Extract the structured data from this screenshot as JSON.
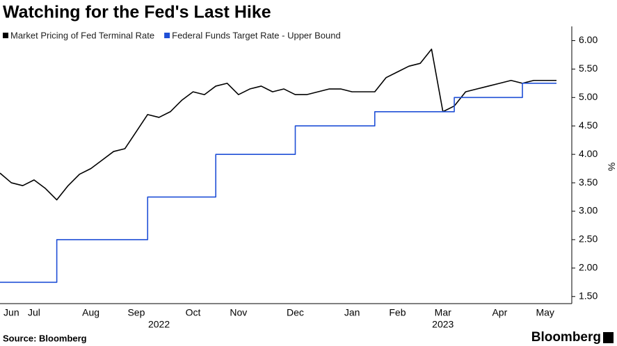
{
  "chart_data": {
    "type": "line",
    "title": "Watching for the Fed's Last Hike",
    "source": "Source: Bloomberg",
    "brand": "Bloomberg",
    "y_label": "%",
    "categories": [
      null,
      "Jun",
      null,
      "Jul",
      null,
      null,
      null,
      null,
      "Aug",
      null,
      null,
      null,
      "Sep",
      null,
      null,
      null,
      null,
      "Oct",
      null,
      null,
      null,
      "Nov",
      null,
      null,
      null,
      null,
      "Dec",
      null,
      null,
      null,
      null,
      "Jan",
      null,
      null,
      null,
      "Feb",
      null,
      null,
      null,
      "Mar",
      null,
      null,
      null,
      null,
      "Apr",
      null,
      null,
      null,
      "May",
      null
    ],
    "category_groups": [
      null,
      null,
      null,
      null,
      null,
      null,
      null,
      null,
      null,
      null,
      null,
      null,
      null,
      null,
      "2022",
      null,
      null,
      null,
      null,
      null,
      null,
      null,
      null,
      null,
      null,
      null,
      null,
      null,
      null,
      null,
      null,
      null,
      null,
      null,
      null,
      null,
      null,
      null,
      null,
      "2023",
      null,
      null,
      null,
      null,
      null,
      null,
      null,
      null,
      null,
      null
    ],
    "series": [
      {
        "name": "Market Pricing of Fed Terminal Rate",
        "color": "#000000",
        "values": [
          3.67,
          3.5,
          3.45,
          3.55,
          3.4,
          3.2,
          3.45,
          3.65,
          3.75,
          3.9,
          4.05,
          4.1,
          4.4,
          4.7,
          4.65,
          4.75,
          4.95,
          5.1,
          5.05,
          5.2,
          5.25,
          5.05,
          5.15,
          5.2,
          5.1,
          5.15,
          5.05,
          5.05,
          5.1,
          5.15,
          5.15,
          5.1,
          5.1,
          5.1,
          5.35,
          5.45,
          5.55,
          5.6,
          5.85,
          4.75,
          4.85,
          5.1,
          5.15,
          5.2,
          5.25,
          5.3,
          5.25,
          5.3,
          5.3,
          5.3
        ]
      },
      {
        "name": "Federal Funds Target Rate - Upper Bound",
        "color": "#1f4fd6",
        "step": "post",
        "values": [
          1.75,
          1.75,
          1.75,
          1.75,
          1.75,
          2.5,
          2.5,
          2.5,
          2.5,
          2.5,
          2.5,
          2.5,
          2.5,
          3.25,
          3.25,
          3.25,
          3.25,
          3.25,
          3.25,
          4.0,
          4.0,
          4.0,
          4.0,
          4.0,
          4.0,
          4.0,
          4.5,
          4.5,
          4.5,
          4.5,
          4.5,
          4.5,
          4.5,
          4.75,
          4.75,
          4.75,
          4.75,
          4.75,
          4.75,
          4.75,
          5.0,
          5.0,
          5.0,
          5.0,
          5.0,
          5.0,
          5.25,
          5.25,
          5.25,
          5.25
        ]
      }
    ],
    "ylim": [
      1.375,
      6.25
    ],
    "yticks": [
      {
        "value": 1.5,
        "label": "1.50"
      },
      {
        "value": 2.0,
        "label": "2.00"
      },
      {
        "value": 2.5,
        "label": "2.50"
      },
      {
        "value": 3.0,
        "label": "3.00"
      },
      {
        "value": 3.5,
        "label": "3.50"
      },
      {
        "value": 4.0,
        "label": "4.00"
      },
      {
        "value": 4.5,
        "label": "4.50"
      },
      {
        "value": 5.0,
        "label": "5.00"
      },
      {
        "value": 5.5,
        "label": "5.50"
      },
      {
        "value": 6.0,
        "label": "6.00"
      }
    ],
    "grid": false
  }
}
